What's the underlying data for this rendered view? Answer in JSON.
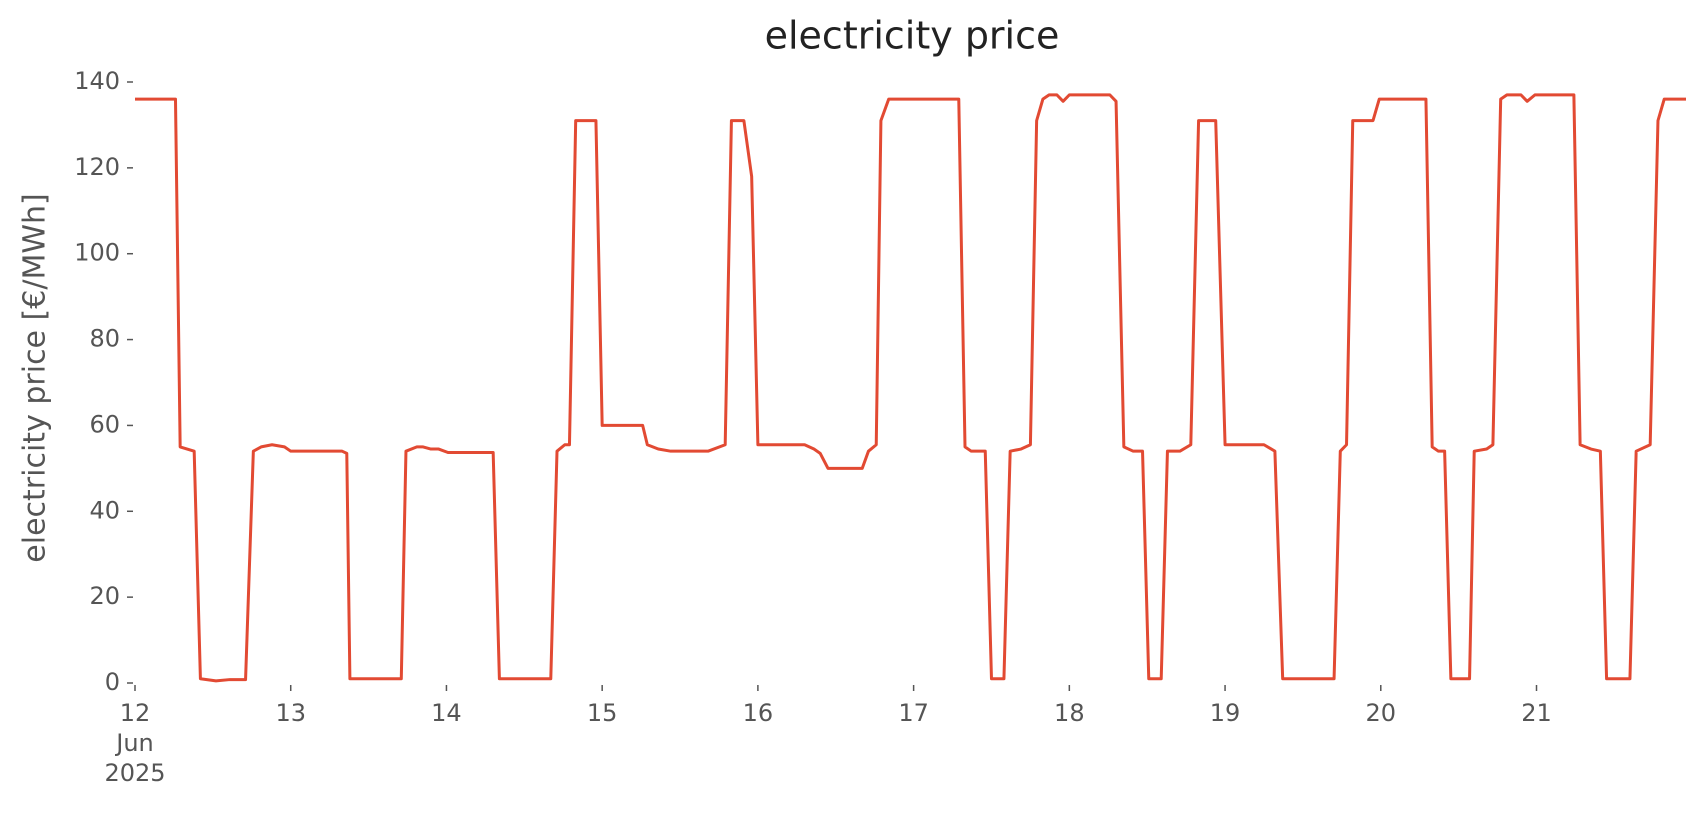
{
  "chart_data": {
    "type": "line",
    "title": "electricity price",
    "y_label": "electricity price [€/MWh]",
    "x": [
      12,
      12.26,
      12.29,
      12.38,
      12.42,
      12.52,
      12.61,
      12.71,
      12.76,
      12.81,
      12.88,
      12.96,
      13.0,
      13.33,
      13.36,
      13.38,
      13.71,
      13.74,
      13.81,
      13.85,
      13.9,
      13.95,
      14.01,
      14.3,
      14.34,
      14.67,
      14.71,
      14.76,
      14.79,
      14.83,
      14.96,
      15.0,
      15.26,
      15.29,
      15.36,
      15.44,
      15.68,
      15.79,
      15.83,
      15.91,
      15.96,
      16.0,
      16.3,
      16.36,
      16.4,
      16.45,
      16.67,
      16.71,
      16.76,
      16.79,
      16.84,
      17.29,
      17.33,
      17.37,
      17.46,
      17.5,
      17.58,
      17.62,
      17.69,
      17.75,
      17.79,
      17.83,
      17.87,
      17.92,
      17.96,
      18.0,
      18.26,
      18.3,
      18.35,
      18.41,
      18.47,
      18.51,
      18.59,
      18.63,
      18.71,
      18.78,
      18.83,
      18.94,
      19.0,
      19.25,
      19.32,
      19.37,
      19.7,
      19.74,
      19.78,
      19.82,
      19.95,
      19.99,
      20.29,
      20.33,
      20.37,
      20.41,
      20.45,
      20.57,
      20.6,
      20.68,
      20.72,
      20.77,
      20.81,
      20.9,
      20.94,
      20.99,
      21.24,
      21.28,
      21.35,
      21.41,
      21.45,
      21.6,
      21.64,
      21.73,
      21.78,
      21.82,
      21.96
    ],
    "values": [
      136,
      136,
      55,
      54,
      1,
      0.5,
      0.8,
      0.8,
      54,
      55,
      55.5,
      55,
      54,
      54,
      53.5,
      1,
      1,
      54,
      55,
      55,
      54.5,
      54.5,
      53.7,
      53.7,
      1,
      1,
      54,
      55.5,
      55.5,
      131,
      131,
      60,
      60,
      55.5,
      54.5,
      54,
      54,
      55.5,
      131,
      131,
      118,
      55.5,
      55.5,
      54.5,
      53.5,
      50,
      50,
      54,
      55.5,
      131,
      136,
      136,
      55,
      54,
      54,
      1,
      1,
      54,
      54.5,
      55.5,
      131,
      136,
      137,
      137,
      135.5,
      137,
      137,
      135.5,
      55,
      54,
      54,
      1,
      1,
      54,
      54,
      55.5,
      131,
      131,
      55.5,
      55.5,
      54,
      1,
      1,
      54,
      55.5,
      131,
      131,
      136,
      136,
      55,
      54,
      54,
      1,
      1,
      54,
      54.5,
      55.5,
      136,
      137,
      137,
      135.5,
      137,
      137,
      55.5,
      54.5,
      54,
      1,
      1,
      54,
      55.5,
      131,
      136,
      136
    ],
    "color": "#e24a33",
    "xlim": [
      12,
      21.96
    ],
    "xticks": [
      {
        "value": 12,
        "label": "12\nJun\n2025"
      },
      13,
      14,
      15,
      16,
      17,
      18,
      19,
      20,
      21
    ],
    "ylim": [
      0,
      140
    ],
    "yticks": [
      0,
      20,
      40,
      60,
      80,
      100,
      120,
      140
    ],
    "grid": false
  }
}
